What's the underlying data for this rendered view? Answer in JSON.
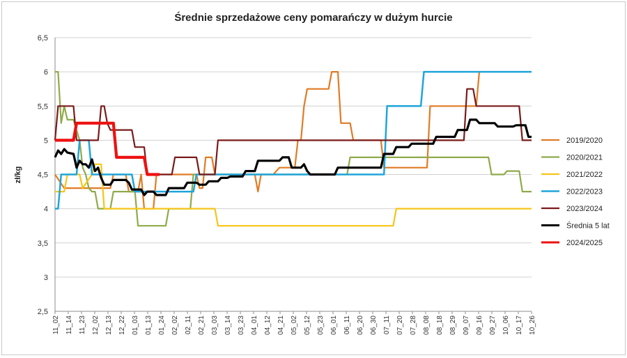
{
  "chart_data": {
    "type": "line",
    "title": "Średnie sprzedażowe ceny pomarańczy w dużym hurcie",
    "ylabel": "zł/kg",
    "xlabel": "",
    "ylim": [
      2.5,
      6.5
    ],
    "yticks": [
      "2,5",
      "3",
      "3,5",
      "4",
      "4,5",
      "5",
      "5,5",
      "6",
      "6,5"
    ],
    "grid": true,
    "legend": "right",
    "x_ticks": [
      "11_02",
      "11_14",
      "11_23",
      "12_02",
      "12_13",
      "12_22",
      "01_03",
      "01_13",
      "01_24",
      "02_02",
      "02_11",
      "02_21",
      "03_03",
      "03_14",
      "03_23",
      "04_01",
      "04_12",
      "04_21",
      "05_02",
      "05_12",
      "05_23",
      "06_01",
      "06_11",
      "06_20",
      "06_30",
      "07_11",
      "07_20",
      "07_28",
      "08_08",
      "08_18",
      "08_29",
      "09_07",
      "09_16",
      "09_27",
      "10_06",
      "10_17",
      "10_26"
    ],
    "n_points": 155,
    "series": [
      {
        "name": "2019/2020",
        "color": "#E07B24",
        "width": 2.2,
        "points": [
          [
            0,
            4.5
          ],
          [
            3,
            4.3
          ],
          [
            18,
            4.3
          ],
          [
            19,
            4.5
          ],
          [
            23,
            4.5
          ],
          [
            24,
            4.25
          ],
          [
            27,
            4.25
          ],
          [
            28,
            4.5
          ],
          [
            29,
            4.0
          ],
          [
            32,
            4.0
          ],
          [
            33,
            4.5
          ],
          [
            45,
            4.5
          ],
          [
            46,
            4.5
          ],
          [
            47,
            4.3
          ],
          [
            48,
            4.3
          ],
          [
            49,
            4.75
          ],
          [
            51,
            4.75
          ],
          [
            52,
            4.5
          ],
          [
            65,
            4.5
          ],
          [
            66,
            4.25
          ],
          [
            67,
            4.5
          ],
          [
            70,
            4.5
          ],
          [
            71,
            4.5
          ],
          [
            73,
            4.6
          ],
          [
            76,
            4.6
          ],
          [
            78,
            4.6
          ],
          [
            79,
            5.0
          ],
          [
            80,
            5.0
          ],
          [
            81,
            5.5
          ],
          [
            82,
            5.75
          ],
          [
            85,
            5.75
          ],
          [
            89,
            5.75
          ],
          [
            90,
            6.0
          ],
          [
            92,
            6.0
          ],
          [
            93,
            5.25
          ],
          [
            96,
            5.25
          ],
          [
            97,
            5.0
          ],
          [
            100,
            5.0
          ],
          [
            106,
            5.0
          ],
          [
            107,
            4.6
          ],
          [
            115,
            4.6
          ],
          [
            121,
            4.6
          ],
          [
            122,
            5.5
          ],
          [
            135,
            5.5
          ],
          [
            137,
            5.5
          ],
          [
            138,
            6.0
          ]
        ]
      },
      {
        "name": "2020/2021",
        "color": "#8FAA4A",
        "width": 2.2,
        "points": [
          [
            0,
            6.0
          ],
          [
            1,
            6.0
          ],
          [
            2,
            5.25
          ],
          [
            3,
            5.5
          ],
          [
            4,
            5.3
          ],
          [
            6,
            5.3
          ],
          [
            8,
            5.0
          ],
          [
            9,
            4.6
          ],
          [
            10,
            4.5
          ],
          [
            11,
            4.3
          ],
          [
            12,
            4.25
          ],
          [
            13,
            4.25
          ],
          [
            14,
            4.0
          ],
          [
            16,
            4.0
          ],
          [
            18,
            4.0
          ],
          [
            19,
            4.25
          ],
          [
            26,
            4.25
          ],
          [
            27,
            3.75
          ],
          [
            36,
            3.75
          ],
          [
            37,
            4.0
          ],
          [
            44,
            4.0
          ],
          [
            45,
            4.5
          ],
          [
            80,
            4.5
          ],
          [
            81,
            4.5
          ],
          [
            82,
            4.5
          ],
          [
            84,
            4.5
          ],
          [
            95,
            4.5
          ],
          [
            96,
            4.75
          ],
          [
            141,
            4.75
          ],
          [
            142,
            4.5
          ],
          [
            146,
            4.5
          ],
          [
            147,
            4.55
          ],
          [
            151,
            4.55
          ],
          [
            152,
            4.25
          ],
          [
            155,
            4.25
          ]
        ]
      },
      {
        "name": "2021/2022",
        "color": "#F5C518",
        "width": 2.2,
        "points": [
          [
            0,
            4.25
          ],
          [
            3,
            4.25
          ],
          [
            4,
            4.5
          ],
          [
            8,
            4.5
          ],
          [
            9,
            4.3
          ],
          [
            12,
            4.5
          ],
          [
            13,
            4.65
          ],
          [
            15,
            4.65
          ],
          [
            16,
            4.0
          ],
          [
            52,
            4.0
          ],
          [
            53,
            3.75
          ],
          [
            110,
            3.75
          ],
          [
            111,
            4.0
          ],
          [
            155,
            4.0
          ]
        ]
      },
      {
        "name": "2022/2023",
        "color": "#1EA5DA",
        "width": 2.5,
        "points": [
          [
            0,
            4.0
          ],
          [
            1,
            4.0
          ],
          [
            2,
            4.5
          ],
          [
            7,
            4.5
          ],
          [
            8,
            5.0
          ],
          [
            11,
            5.0
          ],
          [
            12,
            4.5
          ],
          [
            25,
            4.5
          ],
          [
            26,
            4.25
          ],
          [
            45,
            4.25
          ],
          [
            46,
            4.5
          ],
          [
            107,
            4.5
          ],
          [
            108,
            5.5
          ],
          [
            119,
            5.5
          ],
          [
            120,
            6.0
          ],
          [
            155,
            6.0
          ]
        ]
      },
      {
        "name": "2023/2024",
        "color": "#7A1A1A",
        "width": 2.2,
        "points": [
          [
            0,
            5.0
          ],
          [
            1,
            5.5
          ],
          [
            6,
            5.5
          ],
          [
            7,
            5.0
          ],
          [
            14,
            5.0
          ],
          [
            15,
            5.5
          ],
          [
            16,
            5.5
          ],
          [
            17,
            5.25
          ],
          [
            18,
            5.15
          ],
          [
            25,
            5.15
          ],
          [
            26,
            4.9
          ],
          [
            29,
            4.9
          ],
          [
            30,
            4.5
          ],
          [
            38,
            4.5
          ],
          [
            39,
            4.75
          ],
          [
            46,
            4.75
          ],
          [
            47,
            4.5
          ],
          [
            52,
            4.5
          ],
          [
            53,
            5.0
          ],
          [
            133,
            5.0
          ],
          [
            134,
            5.75
          ],
          [
            136,
            5.75
          ],
          [
            137,
            5.5
          ],
          [
            151,
            5.5
          ],
          [
            152,
            5.0
          ],
          [
            155,
            5.0
          ]
        ]
      },
      {
        "name": "Średnia 5 lat",
        "color": "#000000",
        "width": 3.2,
        "points": [
          [
            0,
            4.75
          ],
          [
            1,
            4.85
          ],
          [
            2,
            4.8
          ],
          [
            3,
            4.87
          ],
          [
            4,
            4.82
          ],
          [
            6,
            4.8
          ],
          [
            7,
            4.6
          ],
          [
            8,
            4.7
          ],
          [
            9,
            4.65
          ],
          [
            10,
            4.65
          ],
          [
            11,
            4.6
          ],
          [
            12,
            4.72
          ],
          [
            13,
            4.55
          ],
          [
            14,
            4.6
          ],
          [
            15,
            4.45
          ],
          [
            16,
            4.35
          ],
          [
            18,
            4.35
          ],
          [
            19,
            4.42
          ],
          [
            23,
            4.42
          ],
          [
            24,
            4.38
          ],
          [
            25,
            4.28
          ],
          [
            28,
            4.28
          ],
          [
            29,
            4.2
          ],
          [
            30,
            4.25
          ],
          [
            32,
            4.25
          ],
          [
            33,
            4.2
          ],
          [
            36,
            4.2
          ],
          [
            37,
            4.3
          ],
          [
            42,
            4.3
          ],
          [
            43,
            4.38
          ],
          [
            46,
            4.38
          ],
          [
            47,
            4.35
          ],
          [
            49,
            4.35
          ],
          [
            50,
            4.4
          ],
          [
            53,
            4.4
          ],
          [
            54,
            4.45
          ],
          [
            56,
            4.45
          ],
          [
            57,
            4.47
          ],
          [
            61,
            4.47
          ],
          [
            62,
            4.55
          ],
          [
            65,
            4.55
          ],
          [
            66,
            4.7
          ],
          [
            73,
            4.7
          ],
          [
            74,
            4.75
          ],
          [
            76,
            4.75
          ],
          [
            77,
            4.6
          ],
          [
            80,
            4.6
          ],
          [
            81,
            4.65
          ],
          [
            82,
            4.55
          ],
          [
            83,
            4.5
          ],
          [
            91,
            4.5
          ],
          [
            92,
            4.6
          ],
          [
            106,
            4.6
          ],
          [
            107,
            4.8
          ],
          [
            110,
            4.8
          ],
          [
            111,
            4.9
          ],
          [
            115,
            4.9
          ],
          [
            116,
            4.95
          ],
          [
            123,
            4.95
          ],
          [
            124,
            5.05
          ],
          [
            130,
            5.05
          ],
          [
            131,
            5.15
          ],
          [
            134,
            5.15
          ],
          [
            135,
            5.3
          ],
          [
            137,
            5.3
          ],
          [
            138,
            5.25
          ],
          [
            143,
            5.25
          ],
          [
            144,
            5.2
          ],
          [
            149,
            5.2
          ],
          [
            150,
            5.22
          ],
          [
            153,
            5.22
          ],
          [
            154,
            5.05
          ],
          [
            155,
            5.05
          ]
        ]
      },
      {
        "name": "2024/2025",
        "color": "#EE1111",
        "width": 4.2,
        "points": [
          [
            0,
            5.0
          ],
          [
            6,
            5.0
          ],
          [
            7,
            5.25
          ],
          [
            19,
            5.25
          ],
          [
            20,
            4.75
          ],
          [
            29,
            4.75
          ],
          [
            30,
            4.5
          ],
          [
            34,
            4.5
          ]
        ]
      }
    ]
  }
}
